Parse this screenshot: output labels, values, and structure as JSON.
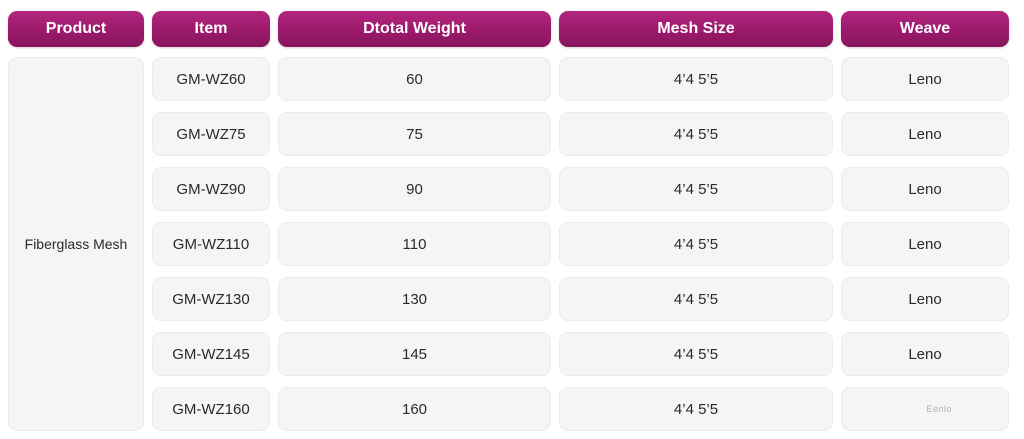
{
  "headers": {
    "product": "Product",
    "item": "Item",
    "weight": "Dtotal Weight",
    "mesh": "Mesh Size",
    "weave": "Weave"
  },
  "product": "Fiberglass Mesh",
  "rows": [
    {
      "item": "GM-WZ60",
      "weight": "60",
      "mesh": "4’4 5’5",
      "weave": "Leno"
    },
    {
      "item": "GM-WZ75",
      "weight": "75",
      "mesh": "4’4 5’5",
      "weave": "Leno"
    },
    {
      "item": "GM-WZ90",
      "weight": "90",
      "mesh": "4’4 5’5",
      "weave": "Leno"
    },
    {
      "item": "GM-WZ110",
      "weight": "110",
      "mesh": "4’4 5’5",
      "weave": "Leno"
    },
    {
      "item": "GM-WZ130",
      "weight": "130",
      "mesh": "4’4 5’5",
      "weave": "Leno"
    },
    {
      "item": "GM-WZ145",
      "weight": "145",
      "mesh": "4’4 5’5",
      "weave": "Leno"
    },
    {
      "item": "GM-WZ160",
      "weight": "160",
      "mesh": "4’4 5’5",
      "weave": "Eenlo"
    }
  ],
  "colors": {
    "header_bg": "#9c1a6c",
    "header_text": "#ffffff",
    "cell_bg": "#f5f5f6",
    "cell_text": "#2a2a2a"
  }
}
